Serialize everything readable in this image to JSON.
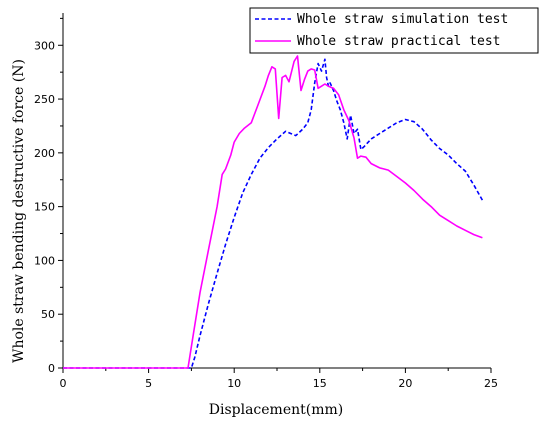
{
  "chart_data": {
    "type": "line",
    "title": "",
    "xlabel": "Displacement(mm)",
    "ylabel": "Whole straw bending destructive force (N)",
    "xlim": [
      0,
      25
    ],
    "ylim": [
      0,
      330
    ],
    "xticks": [
      0,
      5,
      10,
      15,
      20,
      25
    ],
    "yticks": [
      0,
      50,
      100,
      150,
      200,
      250,
      300
    ],
    "x_tick_labels": [
      "0",
      "5",
      "10",
      "15",
      "20",
      "25"
    ],
    "y_tick_labels": [
      "0",
      "50",
      "100",
      "150",
      "200",
      "250",
      "300"
    ],
    "grid": false,
    "legend_position": "top-right",
    "series": [
      {
        "name": "Whole straw simulation test",
        "color": "#0000ff",
        "dash": "dashed",
        "x": [
          0,
          7.5,
          7.7,
          8.0,
          8.5,
          9.0,
          9.5,
          10.0,
          10.5,
          11.0,
          11.5,
          12.0,
          12.5,
          13.0,
          13.3,
          13.6,
          14.0,
          14.3,
          14.5,
          14.7,
          14.9,
          15.1,
          15.3,
          15.4,
          15.5,
          15.6,
          15.8,
          16.0,
          16.2,
          16.4,
          16.6,
          16.8,
          17.0,
          17.2,
          17.4,
          17.6,
          18.0,
          18.5,
          19.0,
          19.5,
          20.0,
          20.5,
          21.0,
          21.5,
          22.0,
          22.5,
          23.0,
          23.5,
          24.0,
          24.5
        ],
        "y": [
          0,
          0,
          10,
          30,
          60,
          88,
          115,
          140,
          163,
          180,
          195,
          205,
          213,
          220,
          218,
          216,
          222,
          228,
          240,
          265,
          283,
          276,
          287,
          270,
          262,
          265,
          258,
          248,
          240,
          228,
          213,
          235,
          218,
          222,
          203,
          206,
          213,
          218,
          223,
          228,
          231,
          229,
          222,
          212,
          204,
          198,
          190,
          183,
          170,
          156
        ]
      },
      {
        "name": "Whole straw practical test",
        "color": "#ff00ff",
        "dash": "solid",
        "x": [
          0,
          7.3,
          7.6,
          8.0,
          8.5,
          9.0,
          9.3,
          9.5,
          9.8,
          10.0,
          10.3,
          10.6,
          11.0,
          11.4,
          11.8,
          12.0,
          12.2,
          12.4,
          12.6,
          12.8,
          13.0,
          13.2,
          13.5,
          13.7,
          13.9,
          14.1,
          14.3,
          14.5,
          14.7,
          14.9,
          15.1,
          15.3,
          15.5,
          15.8,
          16.1,
          16.4,
          16.7,
          17.0,
          17.2,
          17.4,
          17.7,
          18.0,
          18.5,
          19.0,
          19.5,
          20.0,
          20.5,
          21.0,
          21.5,
          22.0,
          22.5,
          23.0,
          23.5,
          24.0,
          24.5
        ],
        "y": [
          0,
          0,
          30,
          70,
          110,
          150,
          180,
          185,
          198,
          210,
          218,
          223,
          228,
          245,
          262,
          272,
          280,
          278,
          232,
          270,
          272,
          266,
          285,
          290,
          258,
          268,
          276,
          278,
          277,
          260,
          262,
          264,
          262,
          260,
          254,
          240,
          230,
          214,
          195,
          197,
          196,
          190,
          186,
          184,
          178,
          172,
          165,
          157,
          150,
          142,
          137,
          132,
          128,
          124,
          121
        ]
      }
    ]
  }
}
